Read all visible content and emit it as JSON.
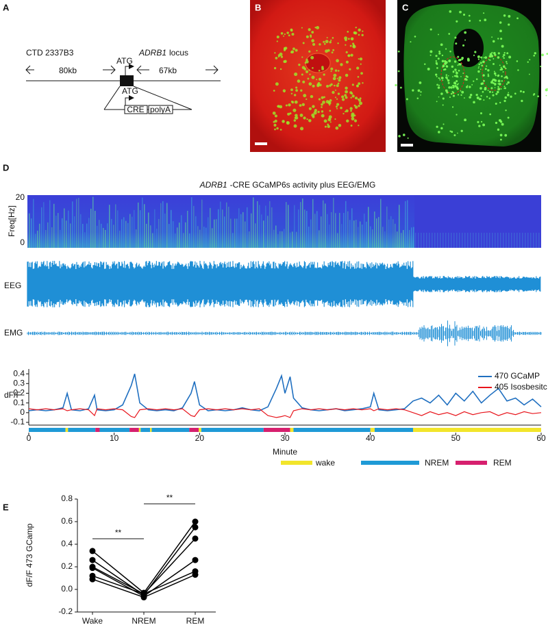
{
  "panel_labels": [
    "A",
    "B",
    "C",
    "D",
    "E"
  ],
  "panel_a": {
    "construct": "CTD 2337B3",
    "atg_top": "ATG",
    "locus_gene": "ADRB1",
    "locus_word": "locus",
    "left_distance": "80kb",
    "right_distance": "67kb",
    "atg_bottom": "ATG",
    "cre": "CRE",
    "polya": "polyA"
  },
  "panel_d": {
    "title_gene": "ADRB1",
    "title": "-CRE GCaMP6s activity plus EEG/EMG",
    "spectrogram_label": "Freq[Hz]",
    "spectrogram_ticks": [
      "20",
      "0"
    ],
    "eeg_label": "EEG",
    "emg_label": "EMG"
  },
  "chart_data": [
    {
      "type": "line",
      "ylabel": "dF/F",
      "xlabel": "Minute",
      "xlim": [
        0,
        60
      ],
      "xticks": [
        0,
        10,
        20,
        30,
        40,
        50,
        60
      ],
      "ylim": [
        -0.1,
        0.45
      ],
      "yticks": [
        -0.1,
        0,
        0.1,
        0.2,
        0.3,
        0.4
      ],
      "x": [
        0,
        1,
        2,
        3,
        4,
        4.5,
        5,
        6,
        7,
        7.7,
        8,
        9,
        10,
        11,
        12,
        12.4,
        13,
        14,
        15,
        16,
        17,
        18,
        19,
        19.4,
        20,
        21,
        22,
        23,
        24,
        25,
        26,
        27,
        28,
        29,
        29.6,
        30,
        30.6,
        31,
        32,
        33,
        34,
        35,
        36,
        37,
        38,
        39,
        40,
        40.4,
        41,
        42,
        43,
        44,
        45,
        46,
        47,
        48,
        49,
        50,
        51,
        52,
        53,
        54,
        55,
        56,
        57,
        58,
        59,
        60
      ],
      "series": [
        {
          "name": "470 GCaMP",
          "color": "#1f6fc0",
          "values": [
            0.02,
            0.03,
            0.02,
            0.03,
            0.05,
            0.2,
            0.03,
            0.02,
            0.04,
            0.18,
            0.03,
            0.02,
            0.03,
            0.08,
            0.28,
            0.4,
            0.1,
            0.03,
            0.02,
            0.03,
            0.02,
            0.05,
            0.2,
            0.32,
            0.08,
            0.02,
            0.03,
            0.02,
            0.03,
            0.05,
            0.03,
            0.02,
            0.06,
            0.25,
            0.38,
            0.2,
            0.37,
            0.15,
            0.05,
            0.03,
            0.02,
            0.03,
            0.04,
            0.02,
            0.03,
            0.04,
            0.06,
            0.2,
            0.03,
            0.02,
            0.03,
            0.04,
            0.12,
            0.15,
            0.1,
            0.18,
            0.08,
            0.2,
            0.12,
            0.22,
            0.1,
            0.18,
            0.25,
            0.12,
            0.15,
            0.08,
            0.14,
            0.06
          ]
        },
        {
          "name": "405 Isosbesitc",
          "color": "#e8141b",
          "values": [
            0.04,
            0.03,
            0.04,
            0.03,
            0.04,
            0.02,
            0.03,
            0.04,
            0.03,
            -0.03,
            0.04,
            0.03,
            0.04,
            0.03,
            -0.04,
            -0.05,
            0.03,
            0.04,
            0.03,
            0.04,
            0.03,
            0.04,
            -0.03,
            -0.04,
            0.03,
            0.04,
            0.03,
            0.04,
            0.03,
            0.04,
            0.03,
            0.04,
            -0.03,
            -0.05,
            -0.04,
            -0.03,
            -0.05,
            0.02,
            0.04,
            0.03,
            0.04,
            0.03,
            0.04,
            0.03,
            0.04,
            0.03,
            0.04,
            0.02,
            0.04,
            0.03,
            0.04,
            0.03,
            0.0,
            -0.03,
            0.01,
            -0.02,
            0.0,
            -0.03,
            0.01,
            -0.02,
            0.0,
            0.01,
            -0.03,
            0.0,
            -0.02,
            0.01,
            -0.01,
            0.0
          ]
        }
      ],
      "stage_legend": [
        {
          "name": "wake",
          "color": "#f2e52b"
        },
        {
          "name": "NREM",
          "color": "#1f9ad6"
        },
        {
          "name": "REM",
          "color": "#d6206e"
        }
      ],
      "stages": [
        {
          "stage": "NREM",
          "start": 0,
          "end": 4.3
        },
        {
          "stage": "wake",
          "start": 4.3,
          "end": 4.6
        },
        {
          "stage": "NREM",
          "start": 4.6,
          "end": 7.8
        },
        {
          "stage": "REM",
          "start": 7.8,
          "end": 8.3
        },
        {
          "stage": "NREM",
          "start": 8.3,
          "end": 11.8
        },
        {
          "stage": "REM",
          "start": 11.8,
          "end": 12.9
        },
        {
          "stage": "wake",
          "start": 12.9,
          "end": 13.1
        },
        {
          "stage": "NREM",
          "start": 13.1,
          "end": 14.2
        },
        {
          "stage": "wake",
          "start": 14.2,
          "end": 14.4
        },
        {
          "stage": "NREM",
          "start": 14.4,
          "end": 18.8
        },
        {
          "stage": "REM",
          "start": 18.8,
          "end": 19.9
        },
        {
          "stage": "wake",
          "start": 19.9,
          "end": 20.2
        },
        {
          "stage": "NREM",
          "start": 20.2,
          "end": 27.5
        },
        {
          "stage": "REM",
          "start": 27.5,
          "end": 30.6
        },
        {
          "stage": "wake",
          "start": 30.6,
          "end": 31
        },
        {
          "stage": "NREM",
          "start": 31,
          "end": 40
        },
        {
          "stage": "wake",
          "start": 40,
          "end": 40.5
        },
        {
          "stage": "NREM",
          "start": 40.5,
          "end": 45
        },
        {
          "stage": "wake",
          "start": 45,
          "end": 60
        }
      ]
    },
    {
      "type": "line",
      "ylabel": "dF/F 473 GCamp",
      "categories": [
        "Wake",
        "NREM",
        "REM"
      ],
      "ylim": [
        -0.2,
        0.8
      ],
      "yticks": [
        -0.2,
        {
          "value": 0,
          "label": "0.0"
        },
        0.2,
        0.4,
        0.6,
        0.8
      ],
      "series": [
        {
          "color": "#000000",
          "values": [
            0.34,
            -0.03,
            0.6
          ]
        },
        {
          "color": "#000000",
          "values": [
            0.26,
            -0.05,
            0.55
          ]
        },
        {
          "color": "#000000",
          "values": [
            0.2,
            -0.04,
            0.45
          ]
        },
        {
          "color": "#000000",
          "values": [
            0.19,
            -0.06,
            0.26
          ]
        },
        {
          "color": "#000000",
          "values": [
            0.12,
            -0.04,
            0.16
          ]
        },
        {
          "color": "#000000",
          "values": [
            0.09,
            -0.07,
            0.13
          ]
        }
      ],
      "annotations": [
        "**",
        "**"
      ]
    }
  ]
}
